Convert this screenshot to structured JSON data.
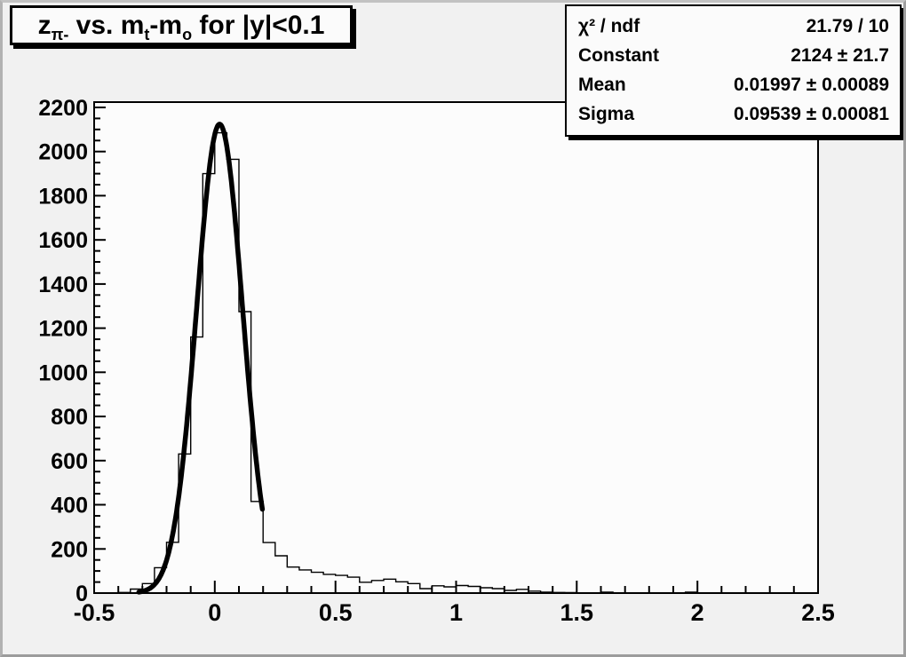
{
  "colors": {
    "canvas_bg": "#f1f1f1",
    "plot_bg": "#fcfcfc",
    "line": "#000000",
    "box_bg": "#fbfbfb",
    "border_gray": "#a0a0a0"
  },
  "title": {
    "plain": "z_{pi-} vs. m_{t}-m_{o} for |y|<0.1",
    "segments": [
      {
        "text": "z"
      },
      {
        "text": "π-",
        "sub": true
      },
      {
        "text": " vs. m"
      },
      {
        "text": "t",
        "sub": true
      },
      {
        "text": "-m"
      },
      {
        "text": "o",
        "sub": true
      },
      {
        "text": " for |y|<0.1"
      }
    ]
  },
  "stats": {
    "rows": [
      {
        "label": "χ² / ndf",
        "value": "21.79 / 10"
      },
      {
        "label": "Constant",
        "value": "2124 ± 21.7"
      },
      {
        "label": "Mean",
        "value": "0.01997 ± 0.00089"
      },
      {
        "label": "Sigma",
        "value": "0.09539 ± 0.00081"
      }
    ]
  },
  "chart_data": {
    "type": "bar",
    "subtype": "step-histogram-with-gaussian-fit",
    "title": "z_{pi-} vs. m_{t}-m_{o} for |y|<0.1",
    "xlabel": "",
    "ylabel": "",
    "xlim": [
      -0.5,
      2.5
    ],
    "ylim": [
      0,
      2224
    ],
    "grid": false,
    "legend_position": "none",
    "bin_start": -0.5,
    "bin_width": 0.05,
    "bin_counts": [
      0,
      0,
      3,
      18,
      43,
      115,
      230,
      630,
      1160,
      1900,
      2085,
      1965,
      1275,
      415,
      229,
      169,
      118,
      105,
      94,
      85,
      80,
      72,
      49,
      57,
      63,
      51,
      43,
      20,
      33,
      28,
      34,
      30,
      24,
      20,
      12,
      17,
      9,
      4,
      3,
      2,
      0,
      0,
      4,
      0,
      0,
      0,
      0,
      0,
      0,
      4,
      0,
      0,
      0,
      0,
      0,
      0,
      0,
      0,
      0,
      0
    ],
    "fit_curve": {
      "model": "gaussian",
      "constant": 2124,
      "mean": 0.01997,
      "sigma": 0.09539,
      "chi2": 21.79,
      "ndf": 10,
      "draw_range": [
        -0.315,
        0.197
      ]
    },
    "x_ticks": {
      "major_values": [
        -0.5,
        0,
        0.5,
        1,
        1.5,
        2,
        2.5
      ],
      "labels": [
        "-0.5",
        "0",
        "0.5",
        "1",
        "1.5",
        "2",
        "2.5"
      ],
      "minor_step": 0.1
    },
    "y_ticks": {
      "major_step": 200,
      "minor_step": 50,
      "labels": [
        "0",
        "200",
        "400",
        "600",
        "800",
        "1000",
        "1200",
        "1400",
        "1600",
        "1800",
        "2000",
        "2200"
      ]
    }
  }
}
